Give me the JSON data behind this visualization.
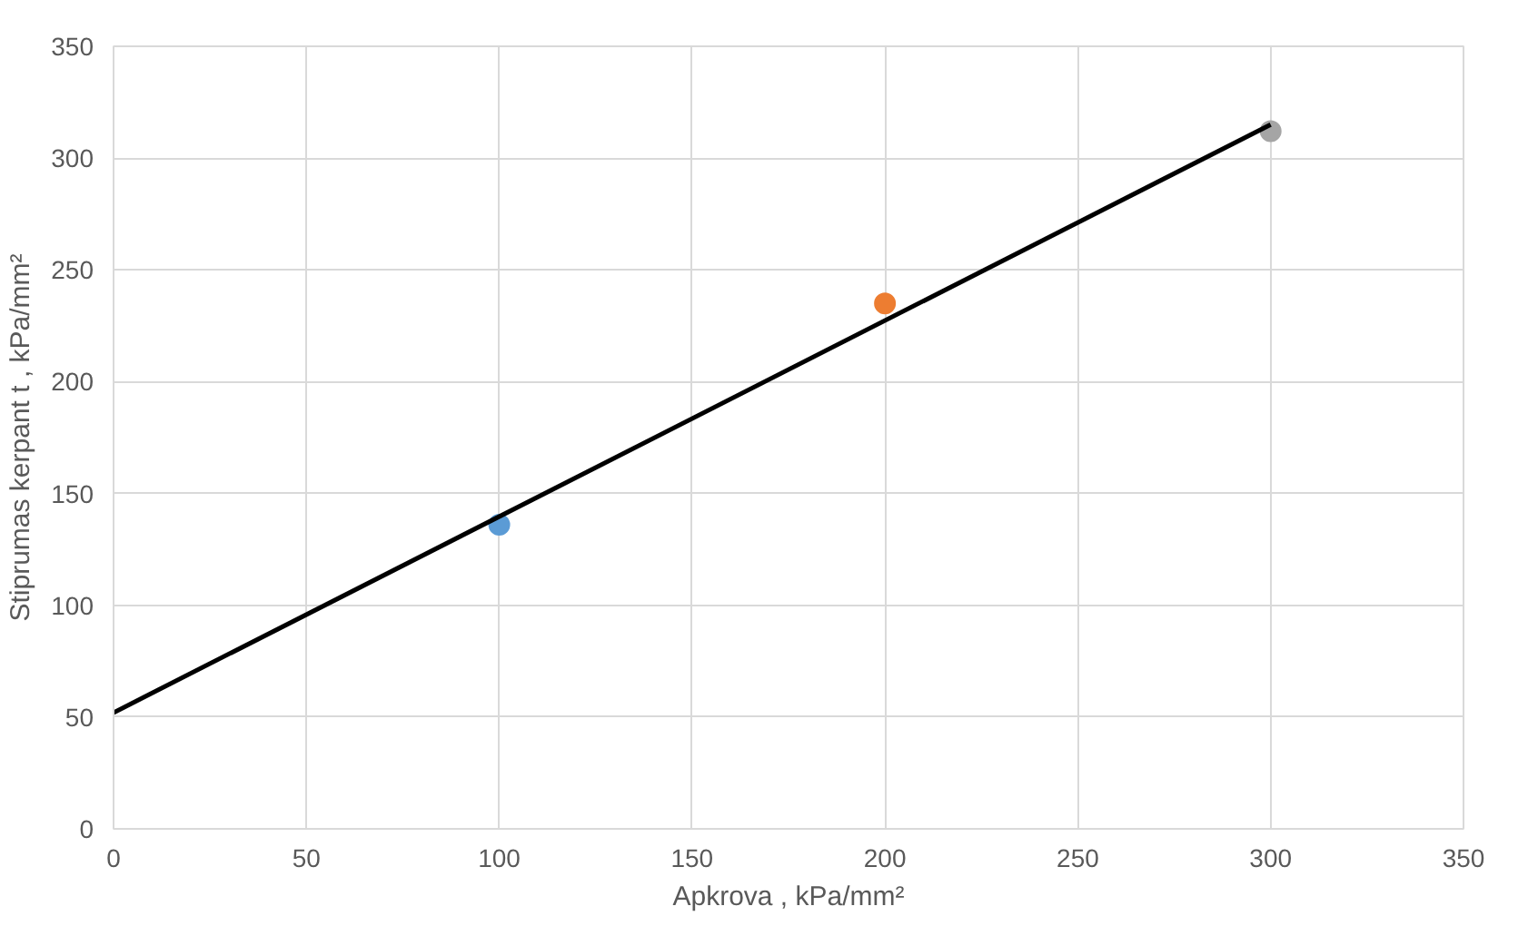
{
  "chart_data": {
    "type": "scatter",
    "xlabel": "Apkrova , kPa/mm²",
    "ylabel": "Stiprumas kerpant t , kPa/mm²",
    "xlim": [
      0,
      350
    ],
    "xticks": [
      0,
      50,
      100,
      150,
      200,
      250,
      300,
      350
    ],
    "ylim": [
      0,
      350
    ],
    "yticks": [
      0,
      50,
      100,
      150,
      200,
      250,
      300,
      350
    ],
    "grid": true,
    "series": [
      {
        "x": [
          100,
          200,
          300
        ],
        "values": [
          136,
          235,
          312
        ],
        "colors": [
          "#5b9bd5",
          "#ed7d31",
          "#a5a5a5"
        ],
        "marker": "circle"
      },
      {
        "type": "line",
        "x": [
          0,
          300
        ],
        "values": [
          52,
          315
        ],
        "color": "#000000",
        "line_style": "solid"
      }
    ]
  }
}
